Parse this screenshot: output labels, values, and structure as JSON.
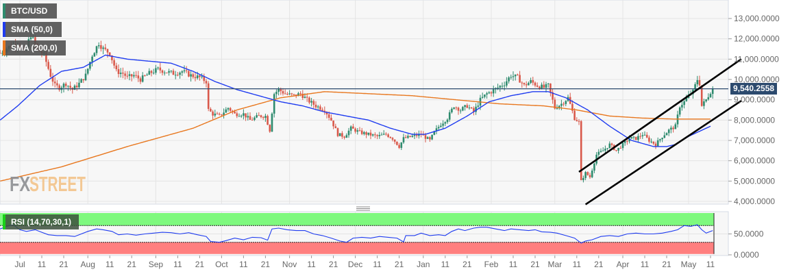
{
  "chart_data": {
    "type": "candlestick",
    "title": "BTC/USD",
    "symbol": "BTC/USD",
    "indicators": [
      {
        "name": "SMA (50,0)",
        "color": "#1f3cf0"
      },
      {
        "name": "SMA (200,0)",
        "color": "#e8771e"
      },
      {
        "name": "RSI (14,70,30,1)",
        "color": "#1f3cf0"
      }
    ],
    "current_price": 9540.2558,
    "current_price_label": "9,540.2558",
    "y_axis": {
      "ticks": [
        13000,
        12000,
        11000,
        10000,
        9000,
        8000,
        7000,
        6000,
        5000,
        4000
      ],
      "tick_labels": [
        "13,000.0000",
        "12,000.0000",
        "11,000.0000",
        "10,000.0000",
        "9,000.0000",
        "8,000.0000",
        "7,000.0000",
        "6,000.0000",
        "5,000.0000",
        "4,000.0000"
      ],
      "ylim": [
        3850,
        13900
      ]
    },
    "rsi_axis": {
      "ticks": [
        50,
        0
      ],
      "tick_labels": [
        "50.0000",
        "0.0000"
      ],
      "overbought": 70,
      "oversold": 30
    },
    "x_axis": {
      "tick_labels": [
        "Jul",
        "11",
        "21",
        "Aug",
        "11",
        "21",
        "Sep",
        "11",
        "21",
        "Oct",
        "11",
        "21",
        "Nov",
        "11",
        "21",
        "Dec",
        "11",
        "21",
        "Jan",
        "11",
        "21",
        "Feb",
        "11",
        "21",
        "Mar",
        "11",
        "21",
        "Apr",
        "11",
        "21",
        "May",
        "11"
      ],
      "tick_days": [
        1,
        11,
        21,
        32,
        42,
        52,
        63,
        73,
        83,
        93,
        103,
        113,
        124,
        134,
        144,
        154,
        164,
        174,
        185,
        195,
        205,
        216,
        226,
        236,
        245,
        255,
        265,
        276,
        286,
        296,
        306,
        316
      ]
    },
    "price_path": [
      [
        -8,
        11300
      ],
      [
        -4,
        11600
      ],
      [
        0,
        11800
      ],
      [
        3,
        11300
      ],
      [
        6,
        12200
      ],
      [
        9,
        11500
      ],
      [
        12,
        11200
      ],
      [
        15,
        10200
      ],
      [
        17,
        9700
      ],
      [
        19,
        9600
      ],
      [
        22,
        9800
      ],
      [
        25,
        9500
      ],
      [
        28,
        9800
      ],
      [
        31,
        10200
      ],
      [
        34,
        11200
      ],
      [
        37,
        11800
      ],
      [
        39,
        11500
      ],
      [
        42,
        11300
      ],
      [
        45,
        10400
      ],
      [
        48,
        10300
      ],
      [
        50,
        10100
      ],
      [
        53,
        10200
      ],
      [
        56,
        10000
      ],
      [
        60,
        10300
      ],
      [
        64,
        10500
      ],
      [
        67,
        10400
      ],
      [
        71,
        10300
      ],
      [
        75,
        10400
      ],
      [
        79,
        10200
      ],
      [
        83,
        10100
      ],
      [
        86,
        9900
      ],
      [
        87,
        8500
      ],
      [
        89,
        8300
      ],
      [
        92,
        8200
      ],
      [
        96,
        8600
      ],
      [
        99,
        8300
      ],
      [
        103,
        8300
      ],
      [
        106,
        8000
      ],
      [
        110,
        8200
      ],
      [
        113,
        8200
      ],
      [
        115,
        7500
      ],
      [
        117,
        9300
      ],
      [
        119,
        9500
      ],
      [
        122,
        9300
      ],
      [
        126,
        9200
      ],
      [
        129,
        9300
      ],
      [
        132,
        9000
      ],
      [
        136,
        8700
      ],
      [
        140,
        8500
      ],
      [
        143,
        8000
      ],
      [
        146,
        7300
      ],
      [
        149,
        7200
      ],
      [
        152,
        7600
      ],
      [
        156,
        7400
      ],
      [
        160,
        7300
      ],
      [
        164,
        7200
      ],
      [
        168,
        7300
      ],
      [
        171,
        7100
      ],
      [
        174,
        6700
      ],
      [
        176,
        7100
      ],
      [
        180,
        7200
      ],
      [
        184,
        7300
      ],
      [
        188,
        7000
      ],
      [
        190,
        7400
      ],
      [
        193,
        7800
      ],
      [
        196,
        8100
      ],
      [
        199,
        8700
      ],
      [
        202,
        8500
      ],
      [
        205,
        8700
      ],
      [
        208,
        8400
      ],
      [
        211,
        9000
      ],
      [
        214,
        9300
      ],
      [
        216,
        9400
      ],
      [
        219,
        9600
      ],
      [
        222,
        9800
      ],
      [
        225,
        10200
      ],
      [
        228,
        10100
      ],
      [
        231,
        9700
      ],
      [
        234,
        9900
      ],
      [
        237,
        9700
      ],
      [
        240,
        9600
      ],
      [
        242,
        9700
      ],
      [
        245,
        8600
      ],
      [
        248,
        8800
      ],
      [
        251,
        9100
      ],
      [
        254,
        8100
      ],
      [
        256,
        7900
      ],
      [
        257,
        5000
      ],
      [
        259,
        5400
      ],
      [
        261,
        5200
      ],
      [
        264,
        6300
      ],
      [
        267,
        6500
      ],
      [
        270,
        6800
      ],
      [
        273,
        6500
      ],
      [
        276,
        6800
      ],
      [
        279,
        7100
      ],
      [
        282,
        7100
      ],
      [
        285,
        7300
      ],
      [
        288,
        7000
      ],
      [
        291,
        6800
      ],
      [
        294,
        7200
      ],
      [
        297,
        7500
      ],
      [
        300,
        7700
      ],
      [
        302,
        8700
      ],
      [
        304,
        8900
      ],
      [
        306,
        9200
      ],
      [
        308,
        9400
      ],
      [
        310,
        10000
      ],
      [
        311,
        9800
      ],
      [
        312,
        8700
      ],
      [
        314,
        9000
      ],
      [
        316,
        9400
      ],
      [
        317,
        9540
      ]
    ],
    "sma50_path": [
      [
        -8,
        8000
      ],
      [
        0,
        8700
      ],
      [
        10,
        9700
      ],
      [
        20,
        10400
      ],
      [
        30,
        10600
      ],
      [
        40,
        11200
      ],
      [
        50,
        11000
      ],
      [
        60,
        10900
      ],
      [
        70,
        10800
      ],
      [
        80,
        10400
      ],
      [
        90,
        9900
      ],
      [
        100,
        9500
      ],
      [
        110,
        9200
      ],
      [
        120,
        8900
      ],
      [
        130,
        8700
      ],
      [
        140,
        8400
      ],
      [
        150,
        8200
      ],
      [
        160,
        8000
      ],
      [
        170,
        7600
      ],
      [
        180,
        7300
      ],
      [
        186,
        7300
      ],
      [
        195,
        7600
      ],
      [
        205,
        8200
      ],
      [
        215,
        8900
      ],
      [
        225,
        9200
      ],
      [
        235,
        9400
      ],
      [
        242,
        9400
      ],
      [
        250,
        9100
      ],
      [
        260,
        8500
      ],
      [
        270,
        7700
      ],
      [
        280,
        7000
      ],
      [
        290,
        6700
      ],
      [
        296,
        6700
      ],
      [
        300,
        6800
      ],
      [
        306,
        7200
      ],
      [
        312,
        7500
      ],
      [
        316,
        7700
      ]
    ],
    "sma200_path": [
      [
        -8,
        5000
      ],
      [
        20,
        5700
      ],
      [
        50,
        6700
      ],
      [
        80,
        7600
      ],
      [
        100,
        8500
      ],
      [
        120,
        9100
      ],
      [
        140,
        9400
      ],
      [
        160,
        9300
      ],
      [
        180,
        9200
      ],
      [
        200,
        9000
      ],
      [
        220,
        8800
      ],
      [
        240,
        8700
      ],
      [
        255,
        8500
      ],
      [
        270,
        8200
      ],
      [
        285,
        8100
      ],
      [
        300,
        8050
      ],
      [
        316,
        8050
      ]
    ],
    "rsi_path": [
      [
        -8,
        62
      ],
      [
        -5,
        68
      ],
      [
        -2,
        72
      ],
      [
        1,
        60
      ],
      [
        4,
        56
      ],
      [
        8,
        60
      ],
      [
        11,
        54
      ],
      [
        14,
        48
      ],
      [
        18,
        46
      ],
      [
        22,
        46
      ],
      [
        26,
        44
      ],
      [
        28,
        48
      ],
      [
        32,
        56
      ],
      [
        36,
        62
      ],
      [
        39,
        60
      ],
      [
        43,
        56
      ],
      [
        46,
        48
      ],
      [
        50,
        50
      ],
      [
        54,
        47
      ],
      [
        58,
        50
      ],
      [
        62,
        52
      ],
      [
        66,
        54
      ],
      [
        70,
        53
      ],
      [
        74,
        50
      ],
      [
        78,
        53
      ],
      [
        82,
        48
      ],
      [
        86,
        44
      ],
      [
        88,
        32
      ],
      [
        92,
        30
      ],
      [
        95,
        34
      ],
      [
        99,
        40
      ],
      [
        103,
        36
      ],
      [
        107,
        42
      ],
      [
        111,
        41
      ],
      [
        114,
        35
      ],
      [
        116,
        62
      ],
      [
        119,
        64
      ],
      [
        123,
        60
      ],
      [
        127,
        58
      ],
      [
        131,
        58
      ],
      [
        135,
        50
      ],
      [
        139,
        46
      ],
      [
        143,
        40
      ],
      [
        147,
        33
      ],
      [
        150,
        30
      ],
      [
        153,
        40
      ],
      [
        157,
        42
      ],
      [
        161,
        40
      ],
      [
        165,
        44
      ],
      [
        169,
        42
      ],
      [
        173,
        40
      ],
      [
        176,
        31
      ],
      [
        177,
        46
      ],
      [
        181,
        46
      ],
      [
        184,
        52
      ],
      [
        188,
        46
      ],
      [
        192,
        48
      ],
      [
        195,
        46
      ],
      [
        198,
        56
      ],
      [
        201,
        62
      ],
      [
        204,
        58
      ],
      [
        208,
        64
      ],
      [
        211,
        66
      ],
      [
        214,
        66
      ],
      [
        218,
        62
      ],
      [
        222,
        58
      ],
      [
        225,
        62
      ],
      [
        229,
        60
      ],
      [
        233,
        58
      ],
      [
        236,
        60
      ],
      [
        239,
        55
      ],
      [
        243,
        54
      ],
      [
        246,
        52
      ],
      [
        250,
        46
      ],
      [
        254,
        40
      ],
      [
        257,
        28
      ],
      [
        259,
        33
      ],
      [
        262,
        36
      ],
      [
        266,
        44
      ],
      [
        270,
        46
      ],
      [
        274,
        44
      ],
      [
        278,
        50
      ],
      [
        282,
        52
      ],
      [
        286,
        50
      ],
      [
        290,
        50
      ],
      [
        294,
        52
      ],
      [
        298,
        56
      ],
      [
        301,
        60
      ],
      [
        304,
        70
      ],
      [
        307,
        68
      ],
      [
        310,
        72
      ],
      [
        312,
        60
      ],
      [
        314,
        52
      ],
      [
        317,
        58
      ]
    ],
    "channel_upper": [
      [
        256,
        5450
      ],
      [
        330,
        11000
      ]
    ],
    "channel_lower": [
      [
        259,
        3850
      ],
      [
        330,
        8950
      ]
    ],
    "horizontal_line": 9540.2558
  },
  "legend": {
    "symbol_label": "BTC/USD",
    "sma50_label": "SMA (50,0)",
    "sma200_label": "SMA (200,0)",
    "rsi_label": "RSI (14,70,30,1)"
  },
  "watermark": {
    "fx": "FX",
    "street": "STREET"
  },
  "colors": {
    "bull": "#2e8b6e",
    "bear": "#d9584a",
    "sma50": "#1f3cf0",
    "sma200": "#e8771e",
    "hline": "#2c4a6e",
    "overbought_zone": "#7ef97e",
    "oversold_zone": "#ff7f7f",
    "grid": "#e4e4e4",
    "plot_bg": "#f7f7f7"
  }
}
